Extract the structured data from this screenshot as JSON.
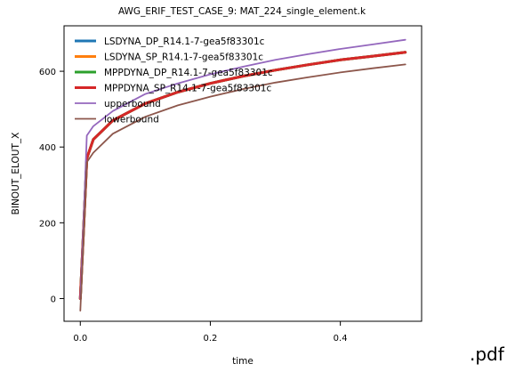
{
  "chart_data": {
    "type": "line",
    "title": "AWG_ERIF_TEST_CASE_9: MAT_224_single_element.k",
    "xlabel": "time",
    "ylabel": "BINOUT_ELOUT_X",
    "xlim": [
      -0.025,
      0.525
    ],
    "ylim": [
      -60,
      720
    ],
    "xticks": [
      "0.0",
      "0.2",
      "0.4"
    ],
    "yticks": [
      "0",
      "200",
      "400",
      "600"
    ],
    "xtick_values": [
      0.0,
      0.2,
      0.4
    ],
    "ytick_values": [
      0,
      200,
      400,
      600
    ],
    "grid": false,
    "legend_position": "top-left",
    "x": [
      0.0,
      0.005,
      0.01,
      0.02,
      0.05,
      0.1,
      0.15,
      0.2,
      0.25,
      0.3,
      0.35,
      0.4,
      0.45,
      0.5
    ],
    "series": [
      {
        "name": "LSDYNA_DP_R14.1-7-gea5f83301c",
        "color": "#1f77b4",
        "values": [
          0,
          180,
          370,
          420,
          470,
          515,
          545,
          568,
          587,
          603,
          617,
          630,
          640,
          650
        ]
      },
      {
        "name": "LSDYNA_SP_R14.1-7-gea5f83301c",
        "color": "#ff7f0e",
        "values": [
          0,
          180,
          370,
          420,
          470,
          515,
          545,
          568,
          587,
          603,
          617,
          630,
          640,
          650
        ]
      },
      {
        "name": "MPPDYNA_DP_R14.1-7-gea5f83301c",
        "color": "#2ca02c",
        "values": [
          0,
          180,
          370,
          420,
          470,
          515,
          545,
          568,
          587,
          603,
          617,
          630,
          640,
          650
        ]
      },
      {
        "name": "MPPDYNA_SP_R14.1-7-gea5f83301c",
        "color": "#d62728",
        "values": [
          0,
          180,
          370,
          420,
          470,
          515,
          545,
          568,
          587,
          603,
          617,
          630,
          640,
          650
        ]
      },
      {
        "name": "upperbound",
        "color": "#9467bd",
        "values": [
          0,
          200,
          430,
          455,
          495,
          540,
          568,
          592,
          612,
          630,
          645,
          659,
          671,
          683
        ]
      },
      {
        "name": "lowerbound",
        "color": "#8c564b",
        "values": [
          -32,
          160,
          360,
          385,
          435,
          480,
          510,
          533,
          553,
          570,
          584,
          597,
          608,
          618
        ]
      }
    ]
  },
  "footer": {
    "tag": ".pdf"
  }
}
